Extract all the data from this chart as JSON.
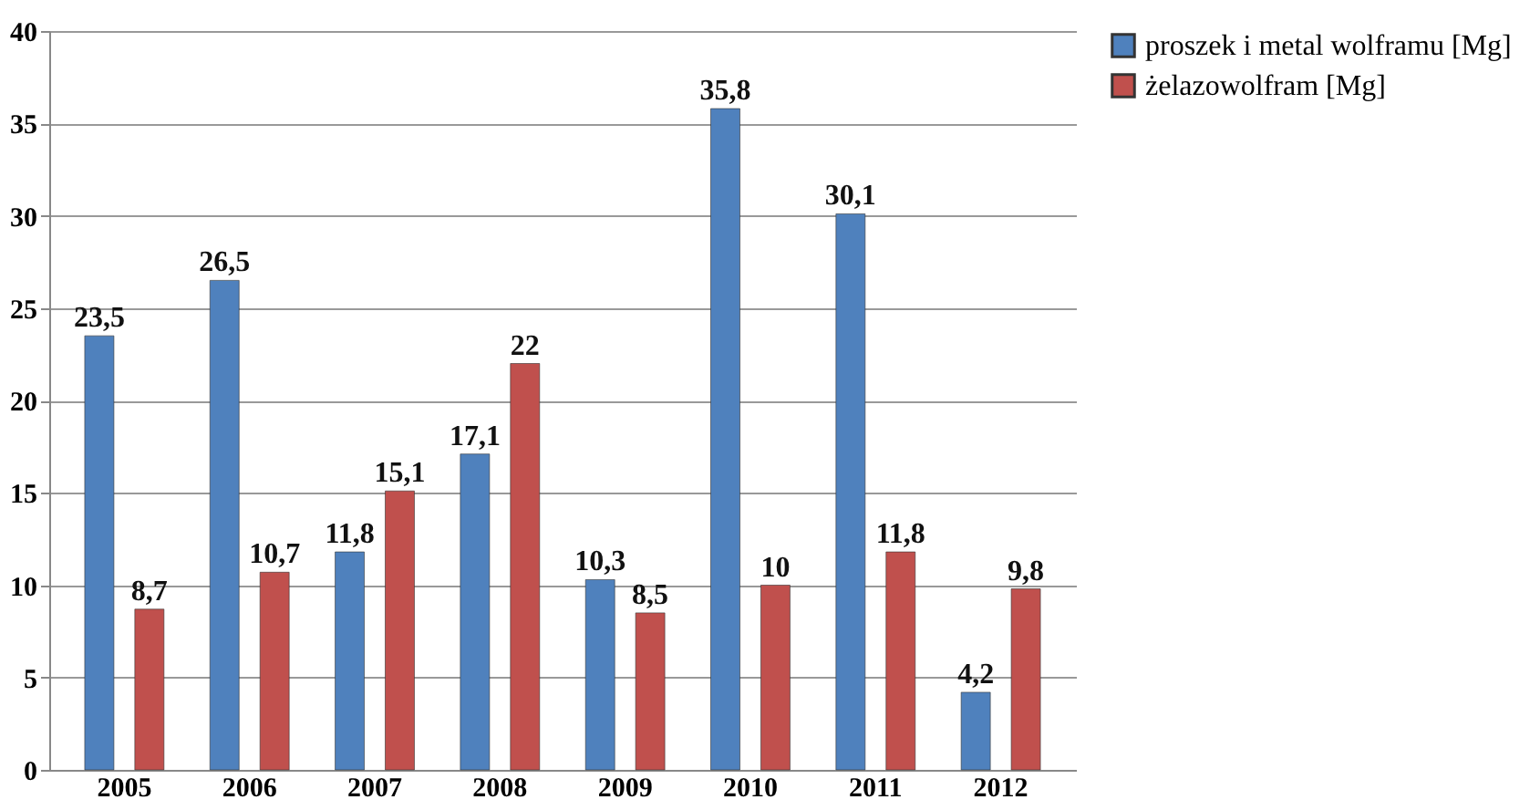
{
  "chart_data": {
    "type": "bar",
    "categories": [
      "2005",
      "2006",
      "2007",
      "2008",
      "2009",
      "2010",
      "2011",
      "2012"
    ],
    "series": [
      {
        "name": "proszek i metal wolframu [Mg]",
        "color": "#4f81bd",
        "values": [
          23.5,
          26.5,
          11.8,
          17.1,
          10.3,
          35.8,
          30.1,
          4.2
        ],
        "value_labels": [
          "23,5",
          "26,5",
          "11,8",
          "17,1",
          "10,3",
          "35,8",
          "30,1",
          "4,2"
        ]
      },
      {
        "name": "żelazowolfram [Mg]",
        "color": "#c0504d",
        "values": [
          8.7,
          10.7,
          15.1,
          22,
          8.5,
          10,
          11.8,
          9.8
        ],
        "value_labels": [
          "8,7",
          "10,7",
          "15,1",
          "22",
          "8,5",
          "10",
          "11,8",
          "9,8"
        ]
      }
    ],
    "ylim": [
      0,
      40
    ],
    "yticks": [
      0,
      5,
      10,
      15,
      20,
      25,
      30,
      35,
      40
    ],
    "grid": "y",
    "legend": "right"
  }
}
